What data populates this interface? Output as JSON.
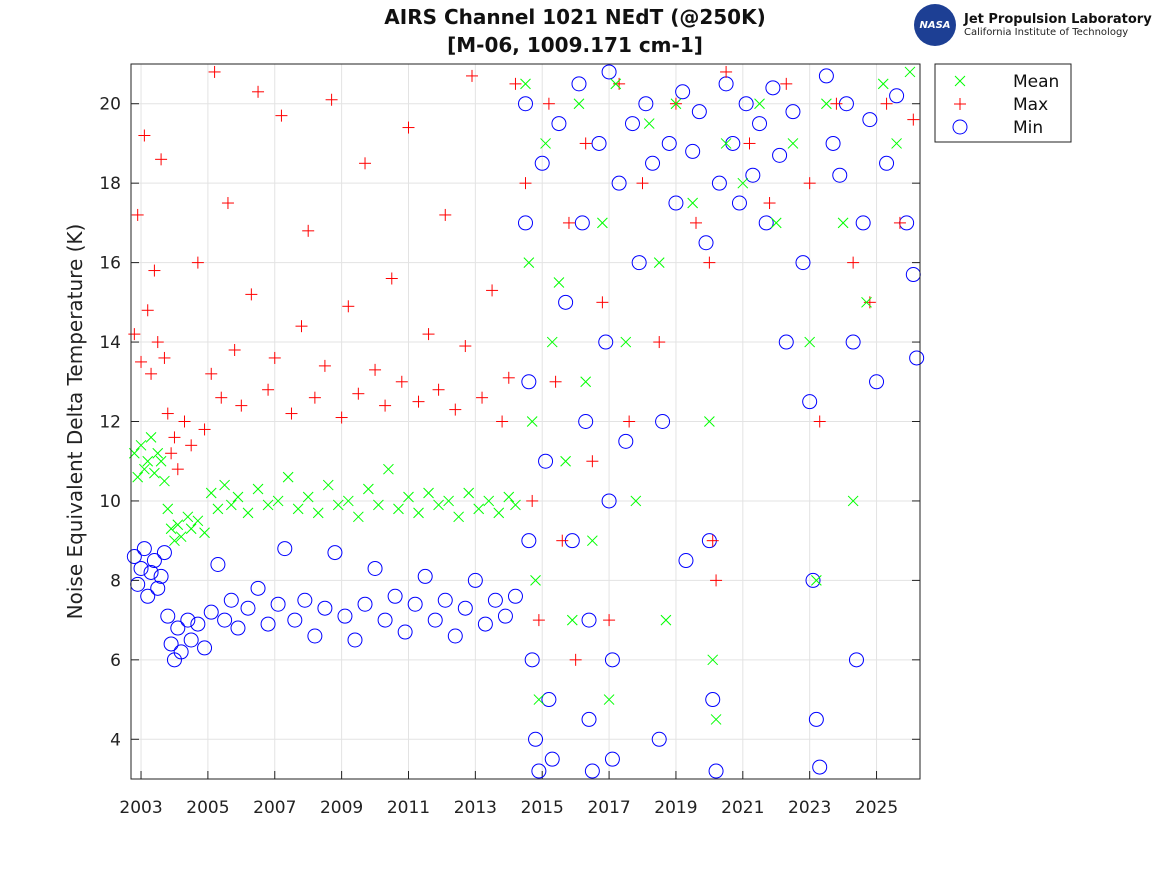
{
  "logo": {
    "nasa": "NASA",
    "name": "Jet Propulsion Laboratory",
    "sub": "California Institute of Technology"
  },
  "chart_data": {
    "type": "scatter",
    "title": "AIRS Channel 1021 NEdT (@250K)",
    "subtitle": "[M-06, 1009.171 cm-1]",
    "xlabel": "",
    "ylabel": "Noise Equivalent Delta Temperature (K)",
    "xlim": [
      2002.7,
      2026.3
    ],
    "ylim": [
      3,
      21
    ],
    "xticks": [
      "2003",
      "2005",
      "2007",
      "2009",
      "2011",
      "2013",
      "2015",
      "2017",
      "2019",
      "2021",
      "2023",
      "2025"
    ],
    "yticks": [
      "4",
      "6",
      "8",
      "10",
      "12",
      "14",
      "16",
      "18",
      "20"
    ],
    "grid": true,
    "legend_placement": "outside-top-right",
    "series": [
      {
        "name": "Mean",
        "color": "#00ff00",
        "marker": "x",
        "points": [
          [
            2002.8,
            11.2
          ],
          [
            2002.9,
            10.6
          ],
          [
            2003.0,
            11.4
          ],
          [
            2003.1,
            10.8
          ],
          [
            2003.2,
            11.0
          ],
          [
            2003.3,
            11.6
          ],
          [
            2003.4,
            10.7
          ],
          [
            2003.5,
            11.2
          ],
          [
            2003.6,
            11.0
          ],
          [
            2003.7,
            10.5
          ],
          [
            2003.8,
            9.8
          ],
          [
            2003.9,
            9.3
          ],
          [
            2004.0,
            9.0
          ],
          [
            2004.1,
            9.4
          ],
          [
            2004.2,
            9.1
          ],
          [
            2004.4,
            9.6
          ],
          [
            2004.5,
            9.3
          ],
          [
            2004.7,
            9.5
          ],
          [
            2004.9,
            9.2
          ],
          [
            2005.1,
            10.2
          ],
          [
            2005.3,
            9.8
          ],
          [
            2005.5,
            10.4
          ],
          [
            2005.7,
            9.9
          ],
          [
            2005.9,
            10.1
          ],
          [
            2006.2,
            9.7
          ],
          [
            2006.5,
            10.3
          ],
          [
            2006.8,
            9.9
          ],
          [
            2007.1,
            10.0
          ],
          [
            2007.4,
            10.6
          ],
          [
            2007.7,
            9.8
          ],
          [
            2008.0,
            10.1
          ],
          [
            2008.3,
            9.7
          ],
          [
            2008.6,
            10.4
          ],
          [
            2008.9,
            9.9
          ],
          [
            2009.2,
            10.0
          ],
          [
            2009.5,
            9.6
          ],
          [
            2009.8,
            10.3
          ],
          [
            2010.1,
            9.9
          ],
          [
            2010.4,
            10.8
          ],
          [
            2010.7,
            9.8
          ],
          [
            2011.0,
            10.1
          ],
          [
            2011.3,
            9.7
          ],
          [
            2011.6,
            10.2
          ],
          [
            2011.9,
            9.9
          ],
          [
            2012.2,
            10.0
          ],
          [
            2012.5,
            9.6
          ],
          [
            2012.8,
            10.2
          ],
          [
            2013.1,
            9.8
          ],
          [
            2013.4,
            10.0
          ],
          [
            2013.7,
            9.7
          ],
          [
            2014.0,
            10.1
          ],
          [
            2014.2,
            9.9
          ],
          [
            2014.5,
            20.5
          ],
          [
            2014.6,
            16
          ],
          [
            2014.7,
            12
          ],
          [
            2014.8,
            8
          ],
          [
            2014.9,
            5
          ],
          [
            2015.1,
            19
          ],
          [
            2015.3,
            14
          ],
          [
            2015.5,
            15.5
          ],
          [
            2015.7,
            11
          ],
          [
            2015.9,
            7
          ],
          [
            2016.1,
            20
          ],
          [
            2016.3,
            13
          ],
          [
            2016.5,
            9
          ],
          [
            2016.8,
            17
          ],
          [
            2017.0,
            5
          ],
          [
            2017.2,
            20.5
          ],
          [
            2017.5,
            14
          ],
          [
            2017.8,
            10
          ],
          [
            2018.2,
            19.5
          ],
          [
            2018.5,
            16
          ],
          [
            2018.7,
            7
          ],
          [
            2019.0,
            20
          ],
          [
            2019.5,
            17.5
          ],
          [
            2020.0,
            12
          ],
          [
            2020.1,
            6
          ],
          [
            2020.2,
            4.5
          ],
          [
            2020.5,
            19
          ],
          [
            2021.0,
            18
          ],
          [
            2021.5,
            20
          ],
          [
            2022.0,
            17
          ],
          [
            2022.5,
            19
          ],
          [
            2023.0,
            14
          ],
          [
            2023.2,
            8
          ],
          [
            2023.5,
            20
          ],
          [
            2024.0,
            17
          ],
          [
            2024.3,
            10
          ],
          [
            2024.7,
            15
          ],
          [
            2025.2,
            20.5
          ],
          [
            2025.6,
            19
          ],
          [
            2026.0,
            20.8
          ]
        ]
      },
      {
        "name": "Max",
        "color": "#ff0000",
        "marker": "+",
        "points": [
          [
            2002.8,
            14.2
          ],
          [
            2002.9,
            17.2
          ],
          [
            2003.0,
            13.5
          ],
          [
            2003.1,
            19.2
          ],
          [
            2003.2,
            14.8
          ],
          [
            2003.3,
            13.2
          ],
          [
            2003.4,
            15.8
          ],
          [
            2003.5,
            14.0
          ],
          [
            2003.6,
            18.6
          ],
          [
            2003.7,
            13.6
          ],
          [
            2003.8,
            12.2
          ],
          [
            2003.9,
            11.2
          ],
          [
            2004.0,
            11.6
          ],
          [
            2004.1,
            10.8
          ],
          [
            2004.3,
            12.0
          ],
          [
            2004.5,
            11.4
          ],
          [
            2004.7,
            16.0
          ],
          [
            2004.9,
            11.8
          ],
          [
            2005.1,
            13.2
          ],
          [
            2005.2,
            20.8
          ],
          [
            2005.4,
            12.6
          ],
          [
            2005.6,
            17.5
          ],
          [
            2005.8,
            13.8
          ],
          [
            2006.0,
            12.4
          ],
          [
            2006.3,
            15.2
          ],
          [
            2006.5,
            20.3
          ],
          [
            2006.8,
            12.8
          ],
          [
            2007.0,
            13.6
          ],
          [
            2007.2,
            19.7
          ],
          [
            2007.5,
            12.2
          ],
          [
            2007.8,
            14.4
          ],
          [
            2008.0,
            16.8
          ],
          [
            2008.2,
            12.6
          ],
          [
            2008.5,
            13.4
          ],
          [
            2008.7,
            20.1
          ],
          [
            2009.0,
            12.1
          ],
          [
            2009.2,
            14.9
          ],
          [
            2009.5,
            12.7
          ],
          [
            2009.7,
            18.5
          ],
          [
            2010.0,
            13.3
          ],
          [
            2010.3,
            12.4
          ],
          [
            2010.5,
            15.6
          ],
          [
            2010.8,
            13.0
          ],
          [
            2011.0,
            19.4
          ],
          [
            2011.3,
            12.5
          ],
          [
            2011.6,
            14.2
          ],
          [
            2011.9,
            12.8
          ],
          [
            2012.1,
            17.2
          ],
          [
            2012.4,
            12.3
          ],
          [
            2012.7,
            13.9
          ],
          [
            2012.9,
            20.7
          ],
          [
            2013.2,
            12.6
          ],
          [
            2013.5,
            15.3
          ],
          [
            2013.8,
            12.0
          ],
          [
            2014.0,
            13.1
          ],
          [
            2014.2,
            20.5
          ],
          [
            2014.5,
            18
          ],
          [
            2014.7,
            10
          ],
          [
            2014.9,
            7
          ],
          [
            2015.2,
            20
          ],
          [
            2015.4,
            13
          ],
          [
            2015.6,
            9
          ],
          [
            2015.8,
            17
          ],
          [
            2016.0,
            6
          ],
          [
            2016.3,
            19
          ],
          [
            2016.5,
            11
          ],
          [
            2016.8,
            15
          ],
          [
            2017.0,
            7
          ],
          [
            2017.3,
            20.5
          ],
          [
            2017.6,
            12
          ],
          [
            2018.0,
            18
          ],
          [
            2018.5,
            14
          ],
          [
            2019.0,
            20
          ],
          [
            2019.6,
            17
          ],
          [
            2020.0,
            16
          ],
          [
            2020.1,
            9
          ],
          [
            2020.2,
            8
          ],
          [
            2020.5,
            20.8
          ],
          [
            2021.2,
            19
          ],
          [
            2021.8,
            17.5
          ],
          [
            2022.3,
            20.5
          ],
          [
            2023.0,
            18
          ],
          [
            2023.3,
            12
          ],
          [
            2023.8,
            20
          ],
          [
            2024.3,
            16
          ],
          [
            2024.8,
            15
          ],
          [
            2025.3,
            20
          ],
          [
            2025.7,
            17
          ],
          [
            2026.1,
            19.6
          ]
        ]
      },
      {
        "name": "Min",
        "color": "#0000ff",
        "marker": "o",
        "points": [
          [
            2002.8,
            8.6
          ],
          [
            2002.9,
            7.9
          ],
          [
            2003.0,
            8.3
          ],
          [
            2003.1,
            8.8
          ],
          [
            2003.2,
            7.6
          ],
          [
            2003.3,
            8.2
          ],
          [
            2003.4,
            8.5
          ],
          [
            2003.5,
            7.8
          ],
          [
            2003.6,
            8.1
          ],
          [
            2003.7,
            8.7
          ],
          [
            2003.8,
            7.1
          ],
          [
            2003.9,
            6.4
          ],
          [
            2004.0,
            6.0
          ],
          [
            2004.1,
            6.8
          ],
          [
            2004.2,
            6.2
          ],
          [
            2004.4,
            7.0
          ],
          [
            2004.5,
            6.5
          ],
          [
            2004.7,
            6.9
          ],
          [
            2004.9,
            6.3
          ],
          [
            2005.1,
            7.2
          ],
          [
            2005.3,
            8.4
          ],
          [
            2005.5,
            7.0
          ],
          [
            2005.7,
            7.5
          ],
          [
            2005.9,
            6.8
          ],
          [
            2006.2,
            7.3
          ],
          [
            2006.5,
            7.8
          ],
          [
            2006.8,
            6.9
          ],
          [
            2007.1,
            7.4
          ],
          [
            2007.3,
            8.8
          ],
          [
            2007.6,
            7.0
          ],
          [
            2007.9,
            7.5
          ],
          [
            2008.2,
            6.6
          ],
          [
            2008.5,
            7.3
          ],
          [
            2008.8,
            8.7
          ],
          [
            2009.1,
            7.1
          ],
          [
            2009.4,
            6.5
          ],
          [
            2009.7,
            7.4
          ],
          [
            2010.0,
            8.3
          ],
          [
            2010.3,
            7.0
          ],
          [
            2010.6,
            7.6
          ],
          [
            2010.9,
            6.7
          ],
          [
            2011.2,
            7.4
          ],
          [
            2011.5,
            8.1
          ],
          [
            2011.8,
            7.0
          ],
          [
            2012.1,
            7.5
          ],
          [
            2012.4,
            6.6
          ],
          [
            2012.7,
            7.3
          ],
          [
            2013.0,
            8.0
          ],
          [
            2013.3,
            6.9
          ],
          [
            2013.6,
            7.5
          ],
          [
            2013.9,
            7.1
          ],
          [
            2014.2,
            7.6
          ],
          [
            2014.5,
            20
          ],
          [
            2014.5,
            17
          ],
          [
            2014.6,
            13
          ],
          [
            2014.6,
            9
          ],
          [
            2014.7,
            6
          ],
          [
            2014.8,
            4
          ],
          [
            2014.9,
            3.2
          ],
          [
            2015.0,
            18.5
          ],
          [
            2015.1,
            11
          ],
          [
            2015.2,
            5
          ],
          [
            2015.3,
            3.5
          ],
          [
            2015.5,
            19.5
          ],
          [
            2015.7,
            15
          ],
          [
            2015.9,
            9
          ],
          [
            2016.1,
            20.5
          ],
          [
            2016.2,
            17
          ],
          [
            2016.3,
            12
          ],
          [
            2016.4,
            7
          ],
          [
            2016.4,
            4.5
          ],
          [
            2016.5,
            3.2
          ],
          [
            2016.7,
            19
          ],
          [
            2016.9,
            14
          ],
          [
            2017.0,
            20.8
          ],
          [
            2017.0,
            10
          ],
          [
            2017.1,
            6
          ],
          [
            2017.1,
            3.5
          ],
          [
            2017.3,
            18
          ],
          [
            2017.5,
            11.5
          ],
          [
            2017.7,
            19.5
          ],
          [
            2017.9,
            16
          ],
          [
            2018.1,
            20
          ],
          [
            2018.3,
            18.5
          ],
          [
            2018.5,
            4
          ],
          [
            2018.6,
            12
          ],
          [
            2018.8,
            19
          ],
          [
            2019.0,
            17.5
          ],
          [
            2019.2,
            20.3
          ],
          [
            2019.3,
            8.5
          ],
          [
            2019.5,
            18.8
          ],
          [
            2019.7,
            19.8
          ],
          [
            2019.9,
            16.5
          ],
          [
            2020.0,
            9
          ],
          [
            2020.1,
            5
          ],
          [
            2020.2,
            3.2
          ],
          [
            2020.3,
            18
          ],
          [
            2020.5,
            20.5
          ],
          [
            2020.7,
            19
          ],
          [
            2020.9,
            17.5
          ],
          [
            2021.1,
            20
          ],
          [
            2021.3,
            18.2
          ],
          [
            2021.5,
            19.5
          ],
          [
            2021.7,
            17
          ],
          [
            2021.9,
            20.4
          ],
          [
            2022.1,
            18.7
          ],
          [
            2022.3,
            14
          ],
          [
            2022.5,
            19.8
          ],
          [
            2022.8,
            16
          ],
          [
            2023.0,
            12.5
          ],
          [
            2023.1,
            8
          ],
          [
            2023.2,
            4.5
          ],
          [
            2023.3,
            3.3
          ],
          [
            2023.5,
            20.7
          ],
          [
            2023.7,
            19
          ],
          [
            2023.9,
            18.2
          ],
          [
            2024.1,
            20
          ],
          [
            2024.3,
            14
          ],
          [
            2024.4,
            6
          ],
          [
            2024.6,
            17
          ],
          [
            2024.8,
            19.6
          ],
          [
            2025.0,
            13
          ],
          [
            2025.3,
            18.5
          ],
          [
            2025.6,
            20.2
          ],
          [
            2025.9,
            17
          ],
          [
            2026.1,
            15.7
          ],
          [
            2026.2,
            13.6
          ]
        ]
      }
    ]
  }
}
